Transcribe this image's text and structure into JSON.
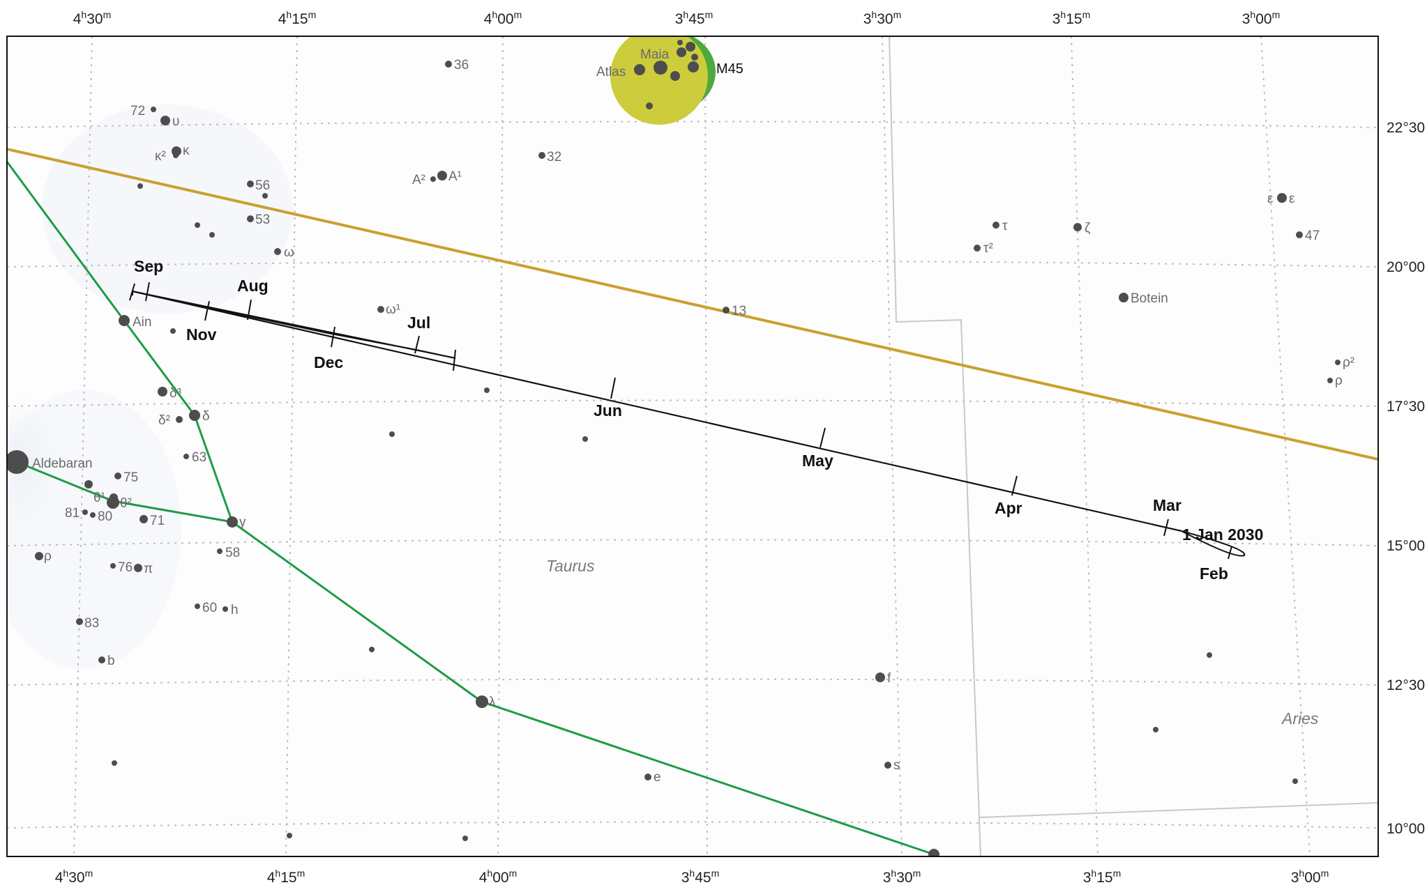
{
  "ra_labels": [
    {
      "h": "4",
      "m": "30"
    },
    {
      "h": "4",
      "m": "15"
    },
    {
      "h": "4",
      "m": "00"
    },
    {
      "h": "3",
      "m": "45"
    },
    {
      "h": "3",
      "m": "30"
    },
    {
      "h": "3",
      "m": "15"
    },
    {
      "h": "3",
      "m": "00"
    }
  ],
  "dec_labels": [
    "22°30",
    "20°00",
    "17°30",
    "15°00",
    "12°30",
    "10°00"
  ],
  "constellations": {
    "taurus": "Taurus",
    "aries": "Aries"
  },
  "cluster": {
    "name": "M45",
    "stars": {
      "maia": "Maia",
      "atlas": "Atlas"
    }
  },
  "path": {
    "start_label": "1 Jan 2030",
    "months": [
      "Feb",
      "Mar",
      "Apr",
      "May",
      "Jun",
      "Jul",
      "Aug",
      "Sep",
      "Nov",
      "Dec"
    ]
  },
  "stars": {
    "aldebaran": "Aldebaran",
    "ain": "Ain",
    "botein": "Botein",
    "delta": "δ",
    "delta2": "δ²",
    "delta3": "δ³",
    "gamma": "γ",
    "theta1": "θ¹",
    "theta2": "θ²",
    "lambda": "λ",
    "epsilon_ari": "ε",
    "epsilon_ari2": "ε",
    "tau": "τ",
    "tau2": "τ²",
    "zeta": "ζ",
    "rho_ari": "ρ",
    "rho2_ari": "ρ²",
    "rho_tau": "ρ",
    "pi": "π",
    "omega": "ω",
    "omega1": "ω¹",
    "kappa": "κ",
    "kappa2": "κ²",
    "upsilon": "υ",
    "a1": "A¹",
    "a2": "A²",
    "h": "h",
    "b": "b",
    "e": "e",
    "f": "f",
    "s": "s",
    "n72": "72",
    "n56": "56",
    "n53": "53",
    "n36": "36",
    "n32": "32",
    "n13": "13",
    "n47": "47",
    "n63": "63",
    "n75": "75",
    "n81": "81",
    "n80": "80",
    "n71": "71",
    "n58": "58",
    "n76": "76",
    "n60": "60",
    "n83": "83"
  },
  "colors": {
    "ecliptic": "#c9a030",
    "constellation_lines": "#1f9b46",
    "boundary": "#c8c8c8",
    "grid": "#bdbdbd",
    "star": "#4d4d4d",
    "cluster_fill": "#cdcc3c",
    "cluster_edge": "#4daa3c"
  }
}
